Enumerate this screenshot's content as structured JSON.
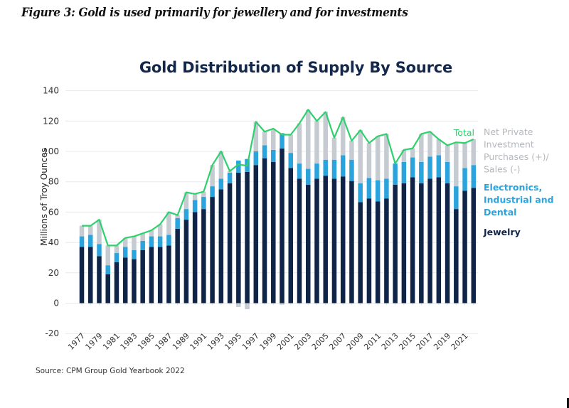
{
  "figure_caption": "Figure 3: Gold is used primarily for jewellery and for investments",
  "source_note": "Source: CPM Group Gold Yearbook 2022",
  "colors": {
    "jewelry": "#0f2447",
    "electronics": "#2ba3dc",
    "investment": "#c6cbd1",
    "total": "#2fd06e",
    "title": "#14284b",
    "grid": "#e6e8eb"
  },
  "chart_data": {
    "type": "bar",
    "stacked": true,
    "title": "Gold Distribution of Supply By Source",
    "xlabel": "",
    "ylabel": "Millions of Troy Ounces",
    "ylim": [
      -20,
      140
    ],
    "yticks": [
      -20,
      0,
      20,
      40,
      60,
      80,
      100,
      120,
      140
    ],
    "grid": true,
    "legend_position": "right",
    "x": [
      1977,
      1978,
      1979,
      1980,
      1981,
      1982,
      1983,
      1984,
      1985,
      1986,
      1987,
      1988,
      1989,
      1990,
      1991,
      1992,
      1993,
      1994,
      1995,
      1996,
      1997,
      1998,
      1999,
      2000,
      2001,
      2002,
      2003,
      2004,
      2005,
      2006,
      2007,
      2008,
      2009,
      2010,
      2011,
      2012,
      2013,
      2014,
      2015,
      2016,
      2017,
      2018,
      2019,
      2020,
      2021,
      2022
    ],
    "xtick_labels": [
      "1977",
      "1979",
      "1981",
      "1983",
      "1985",
      "1987",
      "1989",
      "1991",
      "1993",
      "1995",
      "1997",
      "1999",
      "2001",
      "2003",
      "2005",
      "2007",
      "2009",
      "2011",
      "2013",
      "2015",
      "2017",
      "2019",
      "2021"
    ],
    "series": [
      {
        "name": "Jewelry",
        "key": "jewelry",
        "values": [
          37,
          37,
          31,
          19,
          27,
          30,
          29,
          35,
          37,
          37,
          38,
          49,
          55,
          60,
          62,
          70,
          75,
          79,
          86,
          86.5,
          91,
          95.5,
          93,
          102,
          89,
          82,
          78,
          82,
          84,
          82,
          83.5,
          80.5,
          66.5,
          69,
          67,
          69,
          78,
          79,
          83,
          79,
          82,
          83,
          79,
          62,
          74,
          76
        ]
      },
      {
        "name": "Electronics, Industrial and Dental",
        "key": "electronics",
        "values": [
          7,
          8,
          8,
          6,
          6,
          7,
          6,
          6,
          7,
          7,
          7,
          7,
          7,
          8,
          8,
          7,
          7,
          7,
          8,
          8.5,
          9,
          8.5,
          8,
          10,
          10,
          10,
          10.5,
          10,
          10.5,
          12.5,
          14,
          14,
          12.5,
          13.5,
          14,
          13,
          14,
          14,
          13,
          14,
          14.5,
          14.5,
          14,
          15,
          15,
          15
        ]
      },
      {
        "name": "Net Private Investment Purchases (+)/ Sales (-)",
        "key": "investment",
        "values": [
          7,
          6,
          16,
          13,
          5,
          6,
          9,
          5,
          4,
          8,
          15,
          2,
          11,
          4,
          3.5,
          14,
          18,
          1,
          -2.5,
          -4,
          19.5,
          9,
          14,
          -1,
          12,
          26.5,
          39,
          28,
          31.5,
          14.5,
          25,
          12.5,
          35,
          23,
          29,
          29.5,
          0,
          8,
          6,
          18.5,
          16.5,
          10.5,
          11,
          29,
          16.5,
          17
        ]
      },
      {
        "name": "Total",
        "key": "total",
        "type": "line",
        "values": [
          51,
          51,
          55,
          38,
          38,
          43,
          44,
          46,
          48,
          52,
          60,
          58,
          73,
          72,
          73.5,
          91,
          100,
          87,
          91.5,
          90.5,
          119.5,
          113,
          115,
          111,
          111,
          118.5,
          127.5,
          120,
          126,
          109,
          122.5,
          107,
          114,
          105.5,
          110,
          111.5,
          92,
          101,
          102,
          111.5,
          113,
          108,
          104,
          106,
          105.5,
          108
        ]
      }
    ],
    "legend": [
      {
        "label": "Total",
        "key": "total"
      },
      {
        "label_lines": [
          "Net Private",
          "Investment",
          "Purchases (+)/",
          "Sales (-)"
        ],
        "key": "investment"
      },
      {
        "label_lines": [
          "Electronics,",
          "Industrial and",
          "Dental"
        ],
        "key": "electronics"
      },
      {
        "label_lines": [
          "Jewelry"
        ],
        "key": "jewelry"
      }
    ]
  }
}
